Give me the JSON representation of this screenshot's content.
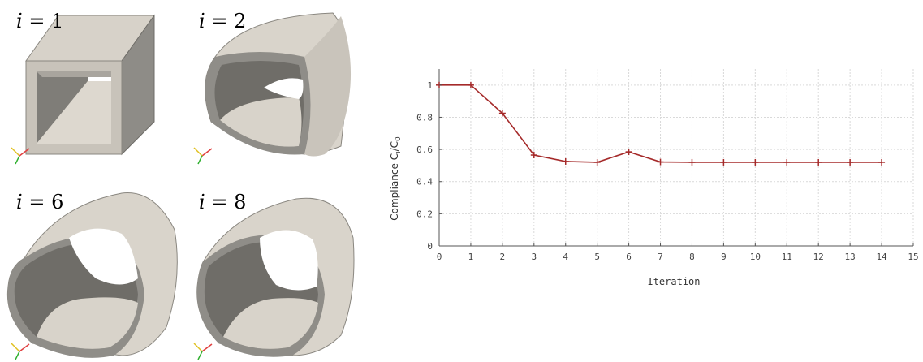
{
  "panels": [
    {
      "var": "i",
      "rel": "=",
      "value": "1"
    },
    {
      "var": "i",
      "rel": "=",
      "value": "2"
    },
    {
      "var": "i",
      "rel": "=",
      "value": "6"
    },
    {
      "var": "i",
      "rel": "=",
      "value": "8"
    }
  ],
  "colors": {
    "shell_light": "#ddd8cf",
    "shell_mid": "#bdb8ae",
    "shell_dark": "#7a7873",
    "series": "#a52a2a",
    "grid": "#d9d9d9",
    "axis": "#555555",
    "axes_x": "#e04040",
    "axes_y": "#e0c020",
    "axes_z": "#30b030"
  },
  "chart_data": {
    "type": "line",
    "xlabel": "Iteration",
    "ylabel_main": "Compliance C",
    "ylabel_sub1": "i",
    "ylabel_sep": "/C",
    "ylabel_sub2": "0",
    "xlim": [
      0,
      15
    ],
    "ylim": [
      0,
      1.1
    ],
    "xticks": [
      0,
      1,
      2,
      3,
      4,
      5,
      6,
      7,
      8,
      9,
      10,
      11,
      12,
      13,
      14,
      15
    ],
    "yticks": [
      0,
      0.2,
      0.4,
      0.6,
      0.8,
      1
    ],
    "grid": true,
    "marker": "plus",
    "series": [
      {
        "x": [
          0,
          1,
          2,
          3,
          4,
          5,
          6,
          7,
          8,
          9,
          10,
          11,
          12,
          13,
          14
        ],
        "y": [
          1.0,
          1.0,
          0.825,
          0.565,
          0.525,
          0.52,
          0.585,
          0.522,
          0.52,
          0.52,
          0.52,
          0.52,
          0.52,
          0.52,
          0.52
        ]
      }
    ]
  }
}
